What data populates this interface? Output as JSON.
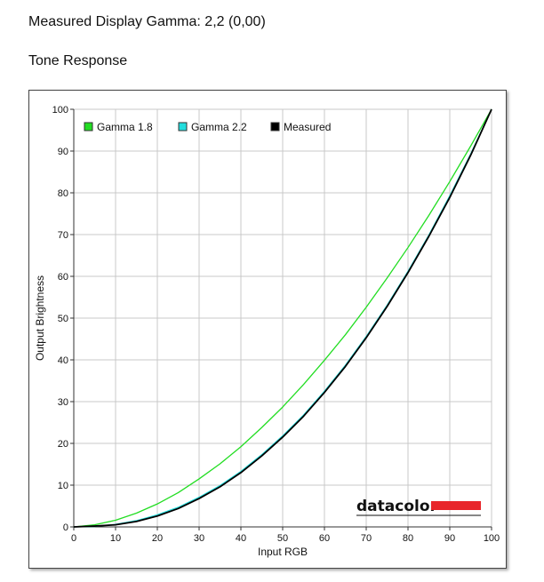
{
  "page": {
    "measured_gamma_text": "Measured Display Gamma: 2,2 (0,00)",
    "section_title": "Tone Response"
  },
  "logo": {
    "text": "datacolor",
    "bar_color": "#e8262b"
  },
  "chart_data": {
    "type": "line",
    "title": "",
    "xlabel": "Input RGB",
    "ylabel": "Output Brightness",
    "xlim": [
      0,
      100
    ],
    "ylim": [
      0,
      100
    ],
    "xticks": [
      0,
      10,
      20,
      30,
      40,
      50,
      60,
      70,
      80,
      90,
      100
    ],
    "yticks": [
      0,
      10,
      20,
      30,
      40,
      50,
      60,
      70,
      80,
      90,
      100
    ],
    "grid": true,
    "legend_position": "top-left",
    "series": [
      {
        "name": "Gamma 1.8",
        "color": "#22dd22",
        "x": [
          0,
          5,
          10,
          15,
          20,
          25,
          30,
          35,
          40,
          45,
          50,
          55,
          60,
          65,
          70,
          75,
          80,
          85,
          90,
          95,
          100
        ],
        "y": [
          0,
          0.5,
          1.6,
          3.3,
          5.5,
          8.2,
          11.5,
          15.1,
          19.2,
          23.8,
          28.7,
          34.1,
          39.9,
          46.0,
          52.6,
          59.6,
          66.9,
          74.6,
          82.7,
          91.2,
          100
        ]
      },
      {
        "name": "Gamma 2.2",
        "color": "#22dddd",
        "x": [
          0,
          5,
          10,
          15,
          20,
          25,
          30,
          35,
          40,
          45,
          50,
          55,
          60,
          65,
          70,
          75,
          80,
          85,
          90,
          95,
          100
        ],
        "y": [
          0,
          0.1,
          0.6,
          1.5,
          2.9,
          4.7,
          7.1,
          9.9,
          13.3,
          17.3,
          21.8,
          26.8,
          32.5,
          38.7,
          45.6,
          53.1,
          61.2,
          69.9,
          79.3,
          89.3,
          100
        ]
      },
      {
        "name": "Measured",
        "color": "#000000",
        "x": [
          0,
          5,
          10,
          15,
          20,
          25,
          30,
          35,
          40,
          45,
          50,
          55,
          60,
          65,
          70,
          75,
          80,
          85,
          90,
          95,
          100
        ],
        "y": [
          0,
          0.2,
          0.5,
          1.3,
          2.6,
          4.4,
          6.8,
          9.6,
          13.0,
          17.0,
          21.5,
          26.5,
          32.2,
          38.4,
          45.3,
          52.8,
          60.9,
          69.6,
          78.9,
          89.0,
          100
        ]
      }
    ]
  }
}
